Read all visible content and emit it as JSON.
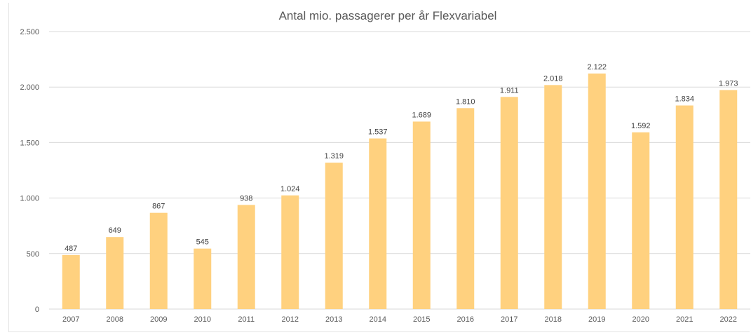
{
  "chart_data": {
    "type": "bar",
    "title": "Antal mio. passagerer per år Flexvariabel",
    "xlabel": "",
    "ylabel": "",
    "categories": [
      "2007",
      "2008",
      "2009",
      "2010",
      "2011",
      "2012",
      "2013",
      "2014",
      "2015",
      "2016",
      "2017",
      "2018",
      "2019",
      "2020",
      "2021",
      "2022"
    ],
    "values": [
      487,
      649,
      867,
      545,
      938,
      1024,
      1319,
      1537,
      1689,
      1810,
      1911,
      2018,
      2122,
      1592,
      1834,
      1973
    ],
    "value_labels": [
      "487",
      "649",
      "867",
      "545",
      "938",
      "1.024",
      "1.319",
      "1.537",
      "1.689",
      "1.810",
      "1.911",
      "2.018",
      "2.122",
      "1.592",
      "1.834",
      "1.973"
    ],
    "ylim": [
      0,
      2500
    ],
    "yticks": [
      0,
      500,
      1000,
      1500,
      2000,
      2500
    ],
    "ytick_labels": [
      "0",
      "500",
      "1.000",
      "1.500",
      "2.000",
      "2.500"
    ],
    "grid": true,
    "legend": "none",
    "bar_color": "#FFD17F"
  }
}
